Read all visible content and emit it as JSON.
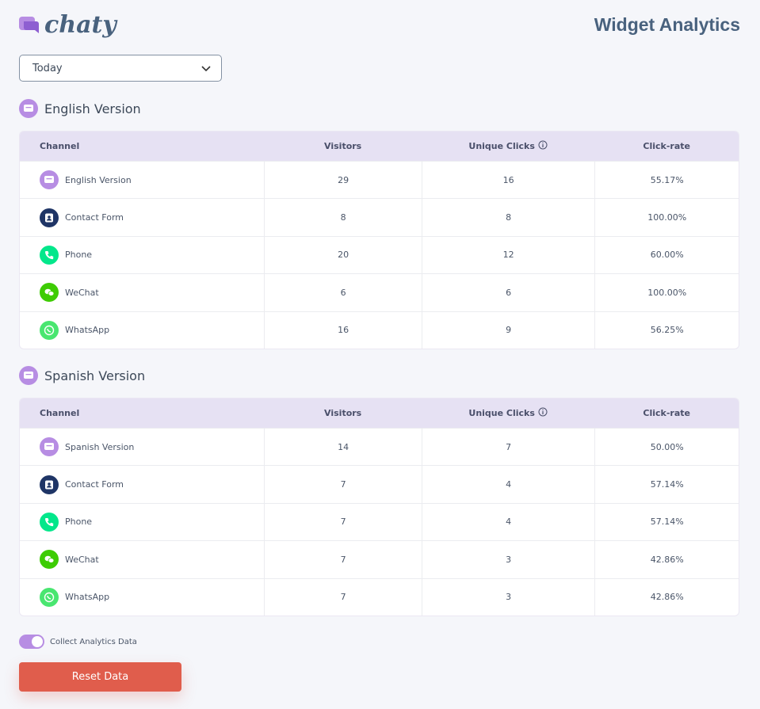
{
  "header": {
    "logo": "chaty",
    "title": "Widget Analytics"
  },
  "filter": {
    "selected": "Today"
  },
  "sections": [
    {
      "title": "English Version",
      "table": {
        "headers": [
          "Channel",
          "Visitors",
          "Unique Clicks",
          "Click-rate"
        ],
        "rows": [
          [
            "English Version",
            29,
            16,
            "55.17%"
          ],
          [
            "Contact Form",
            8,
            8,
            "100.00%"
          ],
          [
            "Phone",
            20,
            12,
            "60.00%"
          ],
          [
            "WeChat",
            6,
            6,
            "100.00%"
          ],
          [
            "WhatsApp",
            16,
            9,
            "56.25%"
          ]
        ]
      }
    },
    {
      "title": "Spanish Version",
      "table": {
        "headers": [
          "Channel",
          "Visitors",
          "Unique Clicks",
          "Click-rate"
        ],
        "rows": [
          [
            "Spanish Version",
            14,
            7,
            "50.00%"
          ],
          [
            "Contact Form",
            7,
            4,
            "57.14%"
          ],
          [
            "Phone",
            7,
            4,
            "57.14%"
          ],
          [
            "WeChat",
            7,
            3,
            "42.86%"
          ],
          [
            "WhatsApp",
            7,
            3,
            "42.86%"
          ]
        ]
      }
    }
  ],
  "toggle": {
    "label": "Collect Analytics Data"
  },
  "button": {
    "label": "Reset Data"
  }
}
